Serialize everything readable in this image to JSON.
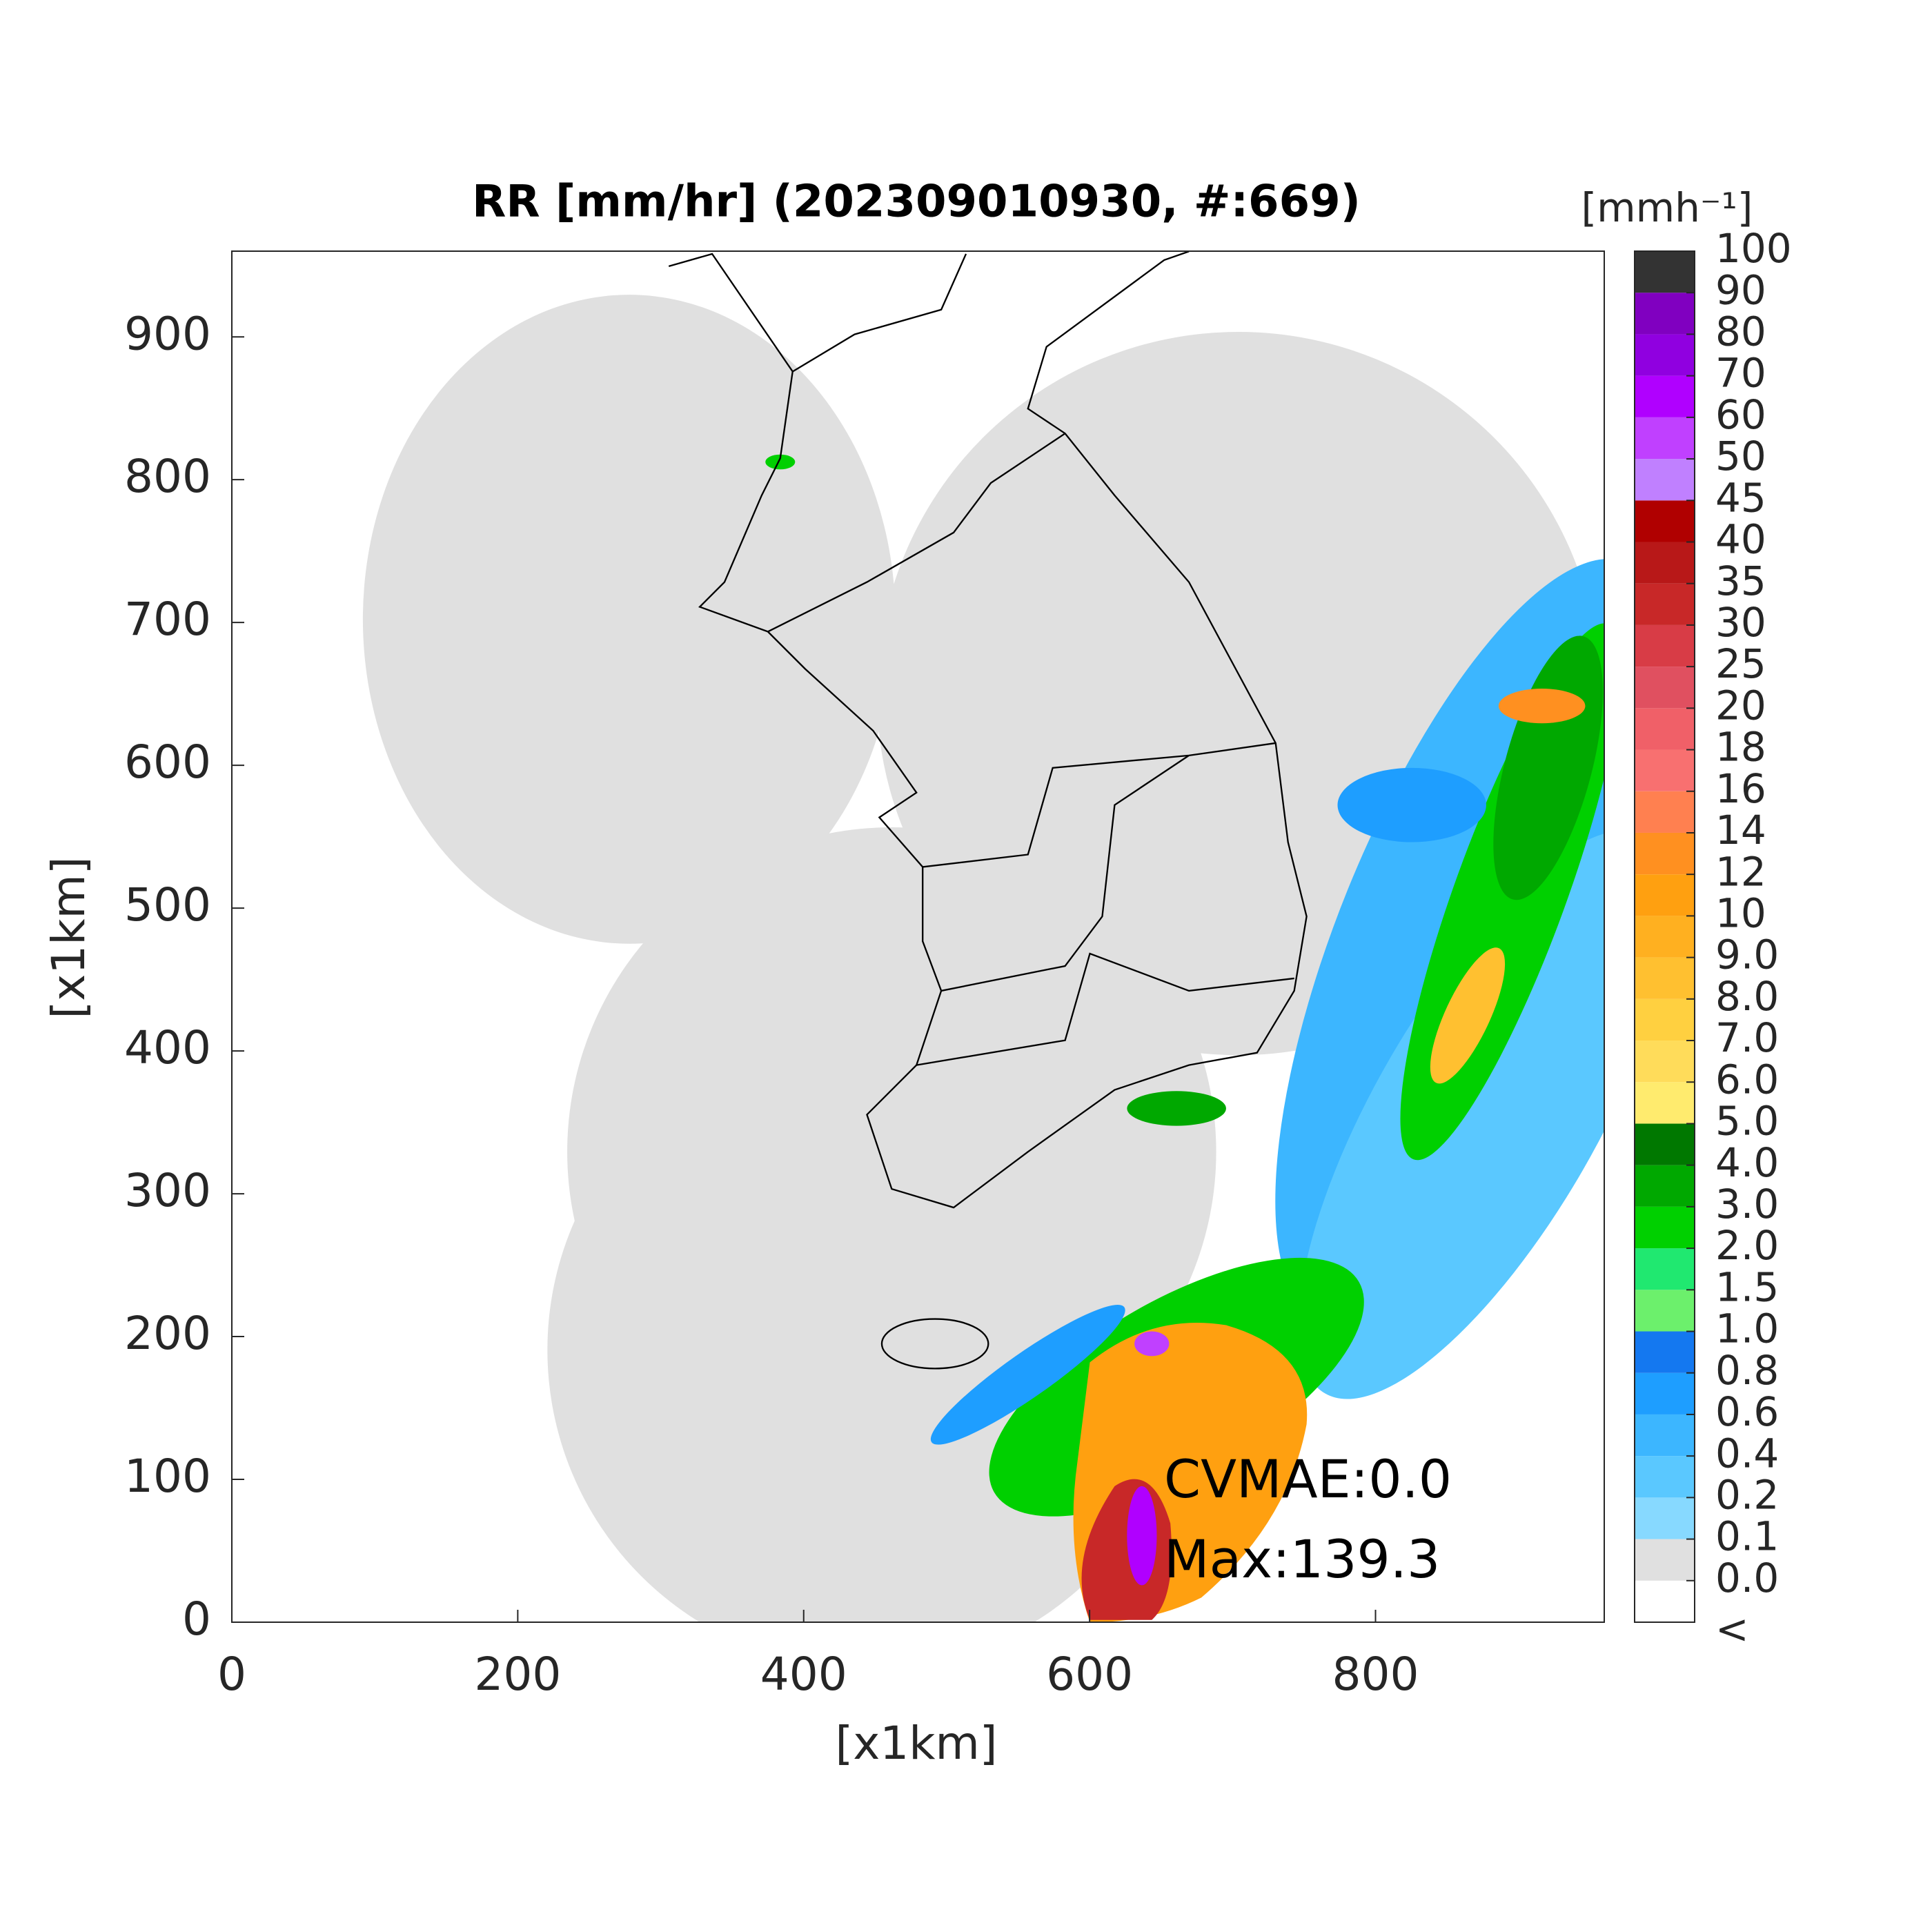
{
  "chart_data": {
    "type": "map",
    "title": "RR [mm/hr] (202309010930, #:669)",
    "xlabel": "[x1km]",
    "ylabel": "[x1km]",
    "xlim": [
      0,
      960
    ],
    "ylim": [
      0,
      960
    ],
    "xticks": [
      0,
      200,
      400,
      600,
      800
    ],
    "yticks": [
      0,
      100,
      200,
      300,
      400,
      500,
      600,
      700,
      800,
      900
    ],
    "annotations": [
      "CVMAE:0.0",
      "Max:139.3"
    ],
    "colorbar": {
      "title": "[mmh⁻¹]",
      "under_label": "<",
      "ticks": [
        {
          "value": 0,
          "label": "0.0"
        },
        0.1,
        0.2,
        0.4,
        0.6,
        0.8,
        {
          "value": 1,
          "label": "1.0"
        },
        1.5,
        {
          "value": 2,
          "label": "2.0"
        },
        {
          "value": 3,
          "label": "3.0"
        },
        {
          "value": 4,
          "label": "4.0"
        },
        {
          "value": 5,
          "label": "5.0"
        },
        {
          "value": 6,
          "label": "6.0"
        },
        {
          "value": 7,
          "label": "7.0"
        },
        {
          "value": 8,
          "label": "8.0"
        },
        {
          "value": 9,
          "label": "9.0"
        },
        10,
        12,
        14,
        16,
        18,
        20,
        25,
        30,
        35,
        40,
        45,
        50,
        60,
        70,
        80,
        90,
        100
      ],
      "colors": [
        "#ffffff",
        "#e0e0e0",
        "#87d9ff",
        "#5ac8ff",
        "#3cb6ff",
        "#1e9eff",
        "#1478f0",
        "#6cf06c",
        "#20e870",
        "#00d000",
        "#00a800",
        "#007800",
        "#ffeb6e",
        "#ffdc5a",
        "#ffd040",
        "#ffc030",
        "#ffb020",
        "#ffa010",
        "#ff9020",
        "#ff8050",
        "#f87070",
        "#f06068",
        "#e05060",
        "#d83c46",
        "#c82828",
        "#b81818",
        "#b00000",
        "#c080ff",
        "#c040ff",
        "#b000ff",
        "#9000e0",
        "#8000c0",
        "#333333"
      ]
    }
  }
}
